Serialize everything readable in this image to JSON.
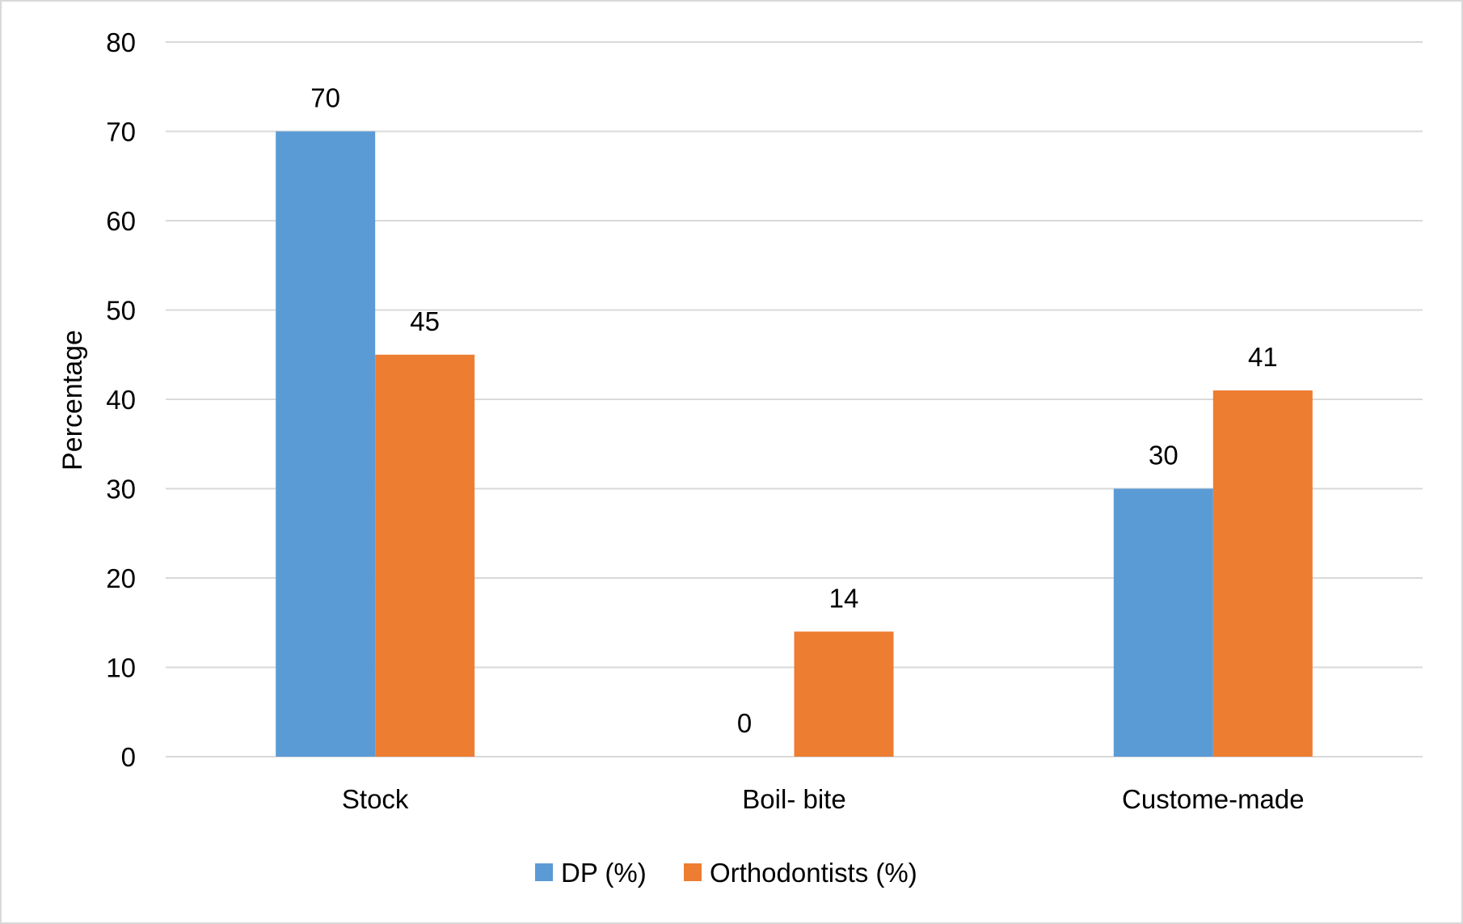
{
  "chart_data": {
    "type": "bar",
    "title": "",
    "xlabel": "",
    "ylabel": "Percentage",
    "ylim": [
      0,
      80
    ],
    "yticks": [
      0,
      10,
      20,
      30,
      40,
      50,
      60,
      70,
      80
    ],
    "grid": true,
    "legend_position": "bottom",
    "categories": [
      "Stock",
      "Boil- bite",
      "Custome-made"
    ],
    "series": [
      {
        "name": "DP (%)",
        "values": [
          70,
          0,
          30
        ],
        "color": "#5B9BD5"
      },
      {
        "name": "Orthodontists (%)",
        "values": [
          45,
          14,
          41
        ],
        "color": "#ED7D31"
      }
    ],
    "data_labels": true
  }
}
